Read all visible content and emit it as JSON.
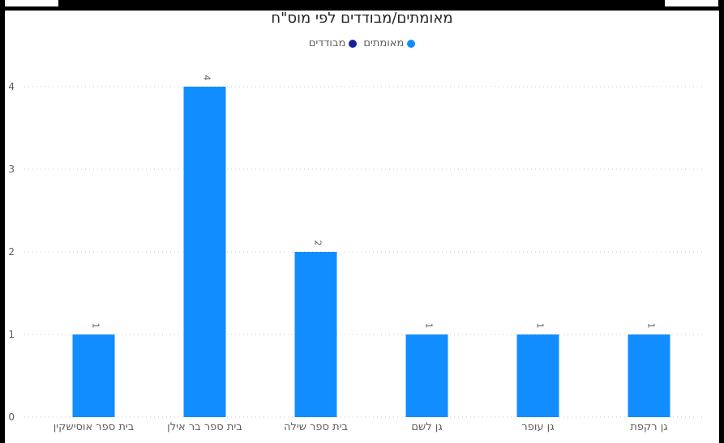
{
  "chart_data": {
    "type": "bar",
    "title": "מאומתים/מבודדים לפי מוס\"ח",
    "categories": [
      "בית ספר אוסישקין",
      "בית ספר בר אילן",
      "בית ספר שילה",
      "גן לשם",
      "גן עופר",
      "גן רקפת"
    ],
    "series": [
      {
        "name": "מאומתים",
        "values": [
          1,
          4,
          2,
          1,
          1,
          1
        ],
        "color": "#118DFF"
      },
      {
        "name": "מבודדים",
        "values": [
          0,
          0,
          0,
          0,
          0,
          0
        ],
        "color": "#12239E"
      }
    ],
    "yticks": [
      0,
      1,
      2,
      3,
      4
    ],
    "ylim": [
      0,
      4
    ],
    "data_labels": [
      "1",
      "4",
      "2",
      "1",
      "1",
      "1"
    ],
    "grid": true,
    "legend_position": "top-center"
  }
}
